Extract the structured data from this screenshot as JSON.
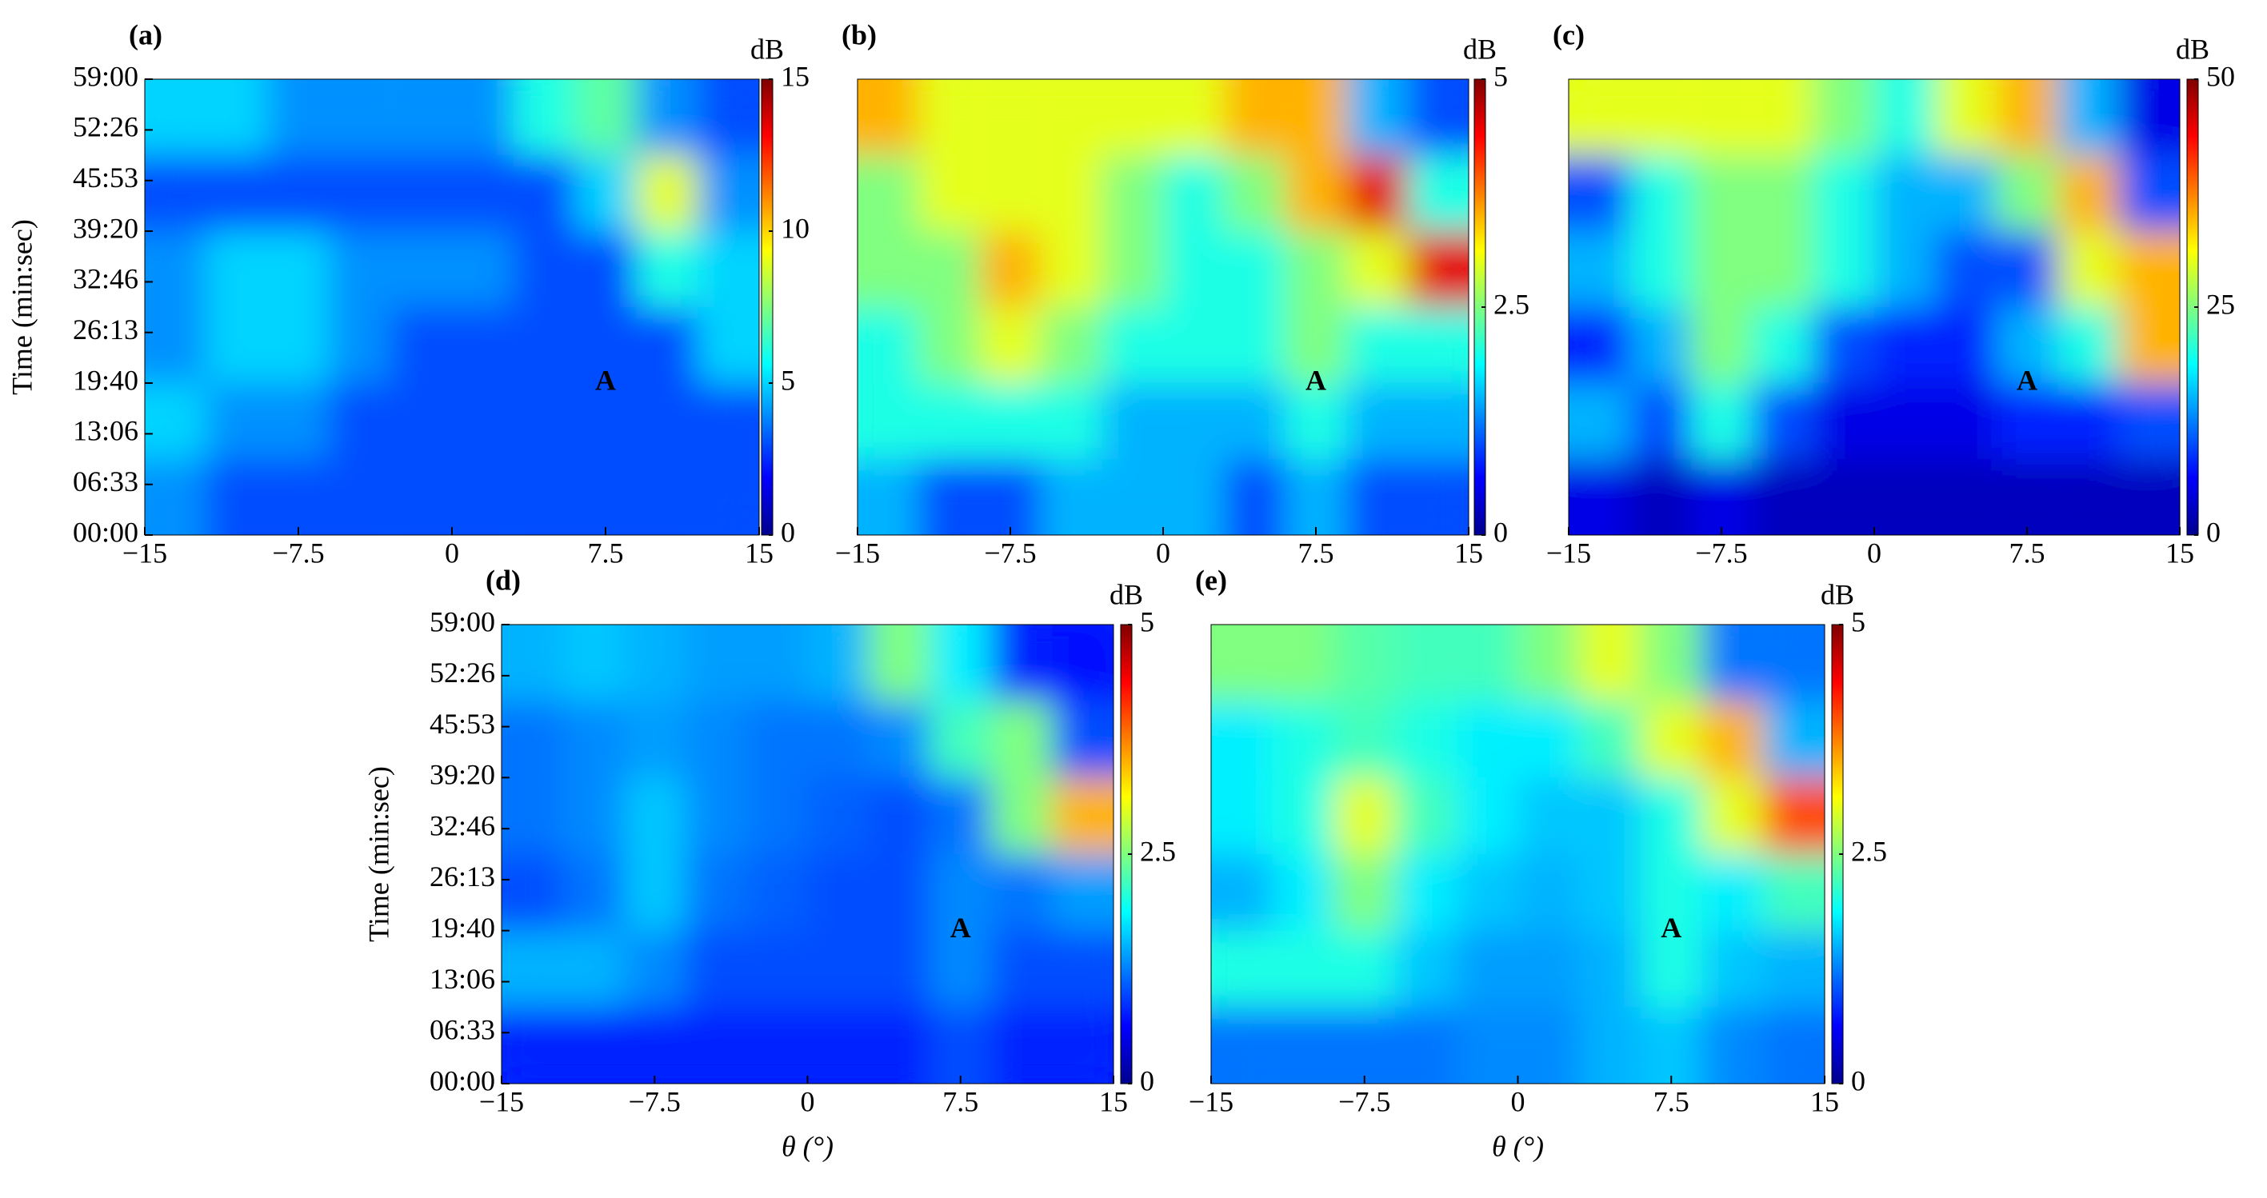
{
  "chart_data": [
    {
      "type": "heatmap",
      "panel_label": "(a)",
      "ylabel": "Time (min:sec)",
      "colormap": "jet",
      "x": [
        -13.5,
        -10.5,
        -7.5,
        -4.5,
        -1.5,
        1.5,
        4.5,
        7.5,
        10.5,
        13.5
      ],
      "y": [
        295,
        885,
        1475,
        2065,
        2655,
        3245
      ],
      "z": [
        [
          4,
          3,
          3,
          3,
          3,
          3,
          3,
          3,
          3,
          3
        ],
        [
          5,
          4,
          4,
          3,
          3,
          3,
          3,
          3,
          3,
          3
        ],
        [
          4,
          5,
          5,
          4,
          3,
          3,
          3,
          3,
          3,
          5
        ],
        [
          4,
          5,
          5,
          4,
          4,
          4,
          3,
          3,
          6,
          5
        ],
        [
          3,
          3,
          3,
          3,
          3,
          3,
          3,
          5,
          9,
          4
        ],
        [
          5,
          5,
          4,
          4,
          4,
          4,
          6,
          7,
          4,
          3
        ]
      ],
      "xlim": [
        -15,
        15
      ],
      "xticks": [
        {
          "value": -15,
          "label": "−15"
        },
        {
          "value": -7.5,
          "label": "−7.5"
        },
        0,
        7.5,
        15
      ],
      "ylim": [
        0,
        3540
      ],
      "yticks": [
        {
          "value": 0,
          "label": "00:00"
        },
        {
          "value": 393,
          "label": "06:33"
        },
        {
          "value": 786,
          "label": "13:06"
        },
        {
          "value": 1180,
          "label": "19:40"
        },
        {
          "value": 1573,
          "label": "26:13"
        },
        {
          "value": 1966,
          "label": "32:46"
        },
        {
          "value": 2360,
          "label": "39:20"
        },
        {
          "value": 2753,
          "label": "45:53"
        },
        {
          "value": 3146,
          "label": "52:26"
        },
        {
          "value": 3540,
          "label": "59:00"
        }
      ],
      "zlim": [
        0,
        15
      ],
      "zticks": [
        0,
        5,
        10,
        15
      ],
      "colorbar_label": "dB",
      "annotations": [
        {
          "text": "A",
          "x": 7.5,
          "y": 1180
        }
      ]
    },
    {
      "type": "heatmap",
      "panel_label": "(b)",
      "colormap": "jet",
      "x": [
        -13.5,
        -10.5,
        -7.5,
        -4.5,
        -1.5,
        1.5,
        4.5,
        7.5,
        10.5,
        13.5
      ],
      "y": [
        295,
        885,
        1475,
        2065,
        2655,
        3245
      ],
      "z": [
        [
          1.5,
          1,
          1,
          1.5,
          1.5,
          1.5,
          1,
          1.5,
          1,
          1
        ],
        [
          2,
          2,
          2,
          2,
          1.5,
          1.5,
          1.5,
          2,
          1.5,
          1.5
        ],
        [
          2,
          2.5,
          3,
          2.5,
          2,
          2,
          2,
          2.5,
          2,
          2
        ],
        [
          2.5,
          2.5,
          3.5,
          3,
          2.5,
          2,
          2,
          2.5,
          3,
          4.5
        ],
        [
          2.5,
          3,
          3,
          3,
          2.5,
          2,
          2.5,
          3.5,
          4.5,
          2
        ],
        [
          3.5,
          3,
          3,
          3,
          3,
          3,
          3.5,
          3.5,
          1.5,
          1
        ]
      ],
      "xlim": [
        -15,
        15
      ],
      "xticks": [
        {
          "value": -15,
          "label": "−15"
        },
        {
          "value": -7.5,
          "label": "−7.5"
        },
        0,
        7.5,
        15
      ],
      "ylim": [
        0,
        3540
      ],
      "zlim": [
        0,
        5
      ],
      "zticks": [
        0,
        2.5,
        5
      ],
      "colorbar_label": "dB",
      "annotations": [
        {
          "text": "A",
          "x": 7.5,
          "y": 1180
        }
      ]
    },
    {
      "type": "heatmap",
      "panel_label": "(c)",
      "colormap": "jet",
      "x": [
        -13.5,
        -10.5,
        -7.5,
        -4.5,
        -1.5,
        1.5,
        4.5,
        7.5,
        10.5,
        13.5
      ],
      "y": [
        295,
        885,
        1475,
        2065,
        2655,
        3245
      ],
      "z": [
        [
          5,
          3,
          5,
          3,
          3,
          3,
          3,
          3,
          3,
          3
        ],
        [
          15,
          10,
          20,
          10,
          5,
          5,
          5,
          8,
          8,
          10
        ],
        [
          8,
          15,
          25,
          20,
          10,
          8,
          8,
          15,
          20,
          35
        ],
        [
          15,
          20,
          25,
          25,
          20,
          15,
          10,
          10,
          30,
          35
        ],
        [
          10,
          20,
          25,
          25,
          20,
          15,
          15,
          25,
          35,
          10
        ],
        [
          30,
          30,
          30,
          30,
          25,
          20,
          30,
          35,
          15,
          5
        ]
      ],
      "xlim": [
        -15,
        15
      ],
      "xticks": [
        {
          "value": -15,
          "label": "−15"
        },
        {
          "value": -7.5,
          "label": "−7.5"
        },
        0,
        7.5,
        15
      ],
      "ylim": [
        0,
        3540
      ],
      "zlim": [
        0,
        50
      ],
      "zticks": [
        0,
        25,
        50
      ],
      "colorbar_label": "dB",
      "annotations": [
        {
          "text": "A",
          "x": 7.5,
          "y": 1180
        }
      ]
    },
    {
      "type": "heatmap",
      "panel_label": "(d)",
      "ylabel": "Time (min:sec)",
      "xlabel": "θ (°)",
      "colormap": "jet",
      "x": [
        -13.5,
        -10.5,
        -7.5,
        -4.5,
        -1.5,
        1.5,
        4.5,
        7.5,
        10.5,
        13.5
      ],
      "y": [
        295,
        885,
        1475,
        2065,
        2655,
        3245
      ],
      "z": [
        [
          0.8,
          0.8,
          0.8,
          0.8,
          0.8,
          0.8,
          0.8,
          1,
          0.8,
          0.8
        ],
        [
          1.5,
          1.5,
          1.3,
          1,
          1,
          1,
          1,
          1.3,
          1,
          1
        ],
        [
          1,
          1.2,
          1.6,
          1.2,
          1.1,
          1,
          1,
          1.3,
          1.2,
          1.4
        ],
        [
          1.2,
          1.3,
          1.6,
          1.3,
          1.2,
          1.1,
          1,
          1.2,
          2.5,
          3.5
        ],
        [
          1.2,
          1.3,
          1.4,
          1.3,
          1.2,
          1.2,
          1.3,
          2.2,
          2.5,
          1
        ],
        [
          1.5,
          1.6,
          1.5,
          1.4,
          1.4,
          1.5,
          2.5,
          1.8,
          0.8,
          0.7
        ]
      ],
      "xlim": [
        -15,
        15
      ],
      "xticks": [
        {
          "value": -15,
          "label": "−15"
        },
        {
          "value": -7.5,
          "label": "−7.5"
        },
        0,
        7.5,
        15
      ],
      "ylim": [
        0,
        3540
      ],
      "yticks": [
        {
          "value": 0,
          "label": "00:00"
        },
        {
          "value": 393,
          "label": "06:33"
        },
        {
          "value": 786,
          "label": "13:06"
        },
        {
          "value": 1180,
          "label": "19:40"
        },
        {
          "value": 1573,
          "label": "26:13"
        },
        {
          "value": 1966,
          "label": "32:46"
        },
        {
          "value": 2360,
          "label": "39:20"
        },
        {
          "value": 2753,
          "label": "45:53"
        },
        {
          "value": 3146,
          "label": "52:26"
        },
        {
          "value": 3540,
          "label": "59:00"
        }
      ],
      "zlim": [
        0,
        5
      ],
      "zticks": [
        0,
        2.5,
        5
      ],
      "colorbar_label": "dB",
      "annotations": [
        {
          "text": "A",
          "x": 7.5,
          "y": 1180
        }
      ]
    },
    {
      "type": "heatmap",
      "panel_label": "(e)",
      "xlabel": "θ (°)",
      "colormap": "jet",
      "x": [
        -13.5,
        -10.5,
        -7.5,
        -4.5,
        -1.5,
        1.5,
        4.5,
        7.5,
        10.5,
        13.5
      ],
      "y": [
        295,
        885,
        1475,
        2065,
        2655,
        3245
      ],
      "z": [
        [
          1.2,
          1.2,
          1.2,
          1.2,
          1.3,
          1.3,
          1.5,
          1.6,
          1.3,
          1.2
        ],
        [
          2,
          2,
          2,
          1.6,
          1.4,
          1.4,
          1.5,
          2,
          1.6,
          1.5
        ],
        [
          1.5,
          1.8,
          2.5,
          1.8,
          1.6,
          1.5,
          1.6,
          2,
          1.8,
          2.2
        ],
        [
          1.8,
          2,
          3,
          2.2,
          1.8,
          1.6,
          1.6,
          2,
          3,
          4
        ],
        [
          1.8,
          2,
          2.2,
          2,
          1.8,
          1.8,
          2.2,
          3,
          3.5,
          1.5
        ],
        [
          2.5,
          2.5,
          2.3,
          2.2,
          2.2,
          2.5,
          3,
          2.5,
          1.2,
          1.2
        ]
      ],
      "xlim": [
        -15,
        15
      ],
      "xticks": [
        {
          "value": -15,
          "label": "−15"
        },
        {
          "value": -7.5,
          "label": "−7.5"
        },
        0,
        7.5,
        15
      ],
      "ylim": [
        0,
        3540
      ],
      "zlim": [
        0,
        5
      ],
      "zticks": [
        0,
        2.5,
        5
      ],
      "colorbar_label": "dB",
      "annotations": [
        {
          "text": "A",
          "x": 7.5,
          "y": 1180
        }
      ]
    }
  ]
}
